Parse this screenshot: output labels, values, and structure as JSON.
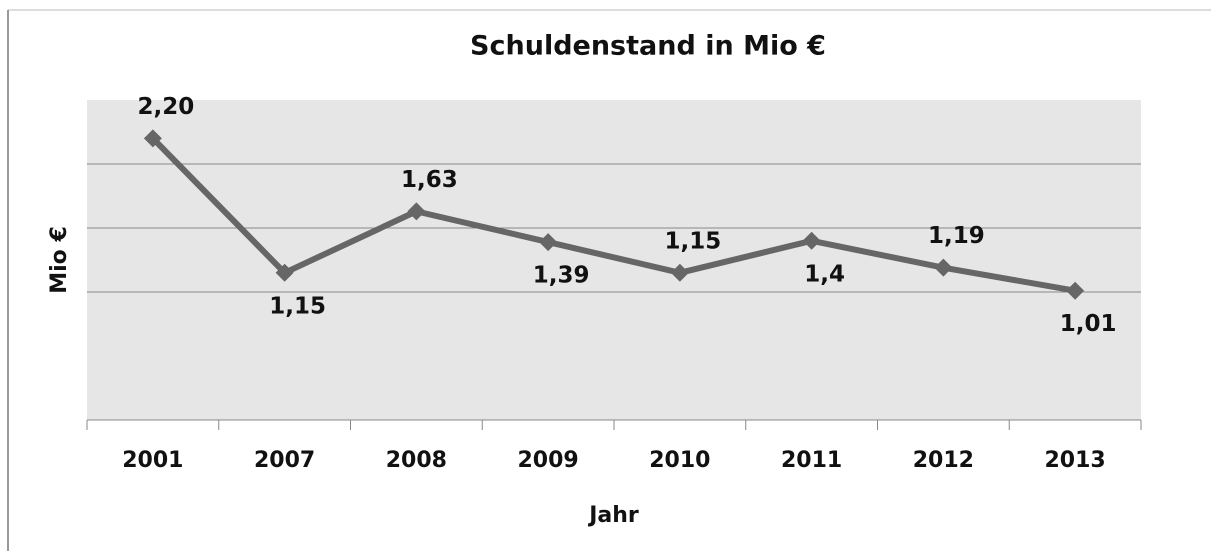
{
  "chart_data": {
    "type": "line",
    "title": "Schuldenstand in Mio €",
    "x_label": "Jahr",
    "y_label": "Mio €",
    "categories": [
      "2001",
      "2007",
      "2008",
      "2009",
      "2010",
      "2011",
      "2012",
      "2013"
    ],
    "series": [
      {
        "name": "Schuldenstand",
        "color": "#666666",
        "values": [
          2.2,
          1.15,
          1.63,
          1.39,
          1.15,
          1.4,
          1.19,
          1.01
        ],
        "value_labels": [
          "2,20",
          "1,15",
          "1,63",
          "1,39",
          "1,15",
          "1,4",
          "1,19",
          "1,01"
        ]
      }
    ],
    "ylim": [
      0,
      2.5
    ],
    "yticks": [
      1,
      1.5,
      2
    ],
    "ytick_labels": false,
    "grid": true,
    "legend": false
  }
}
